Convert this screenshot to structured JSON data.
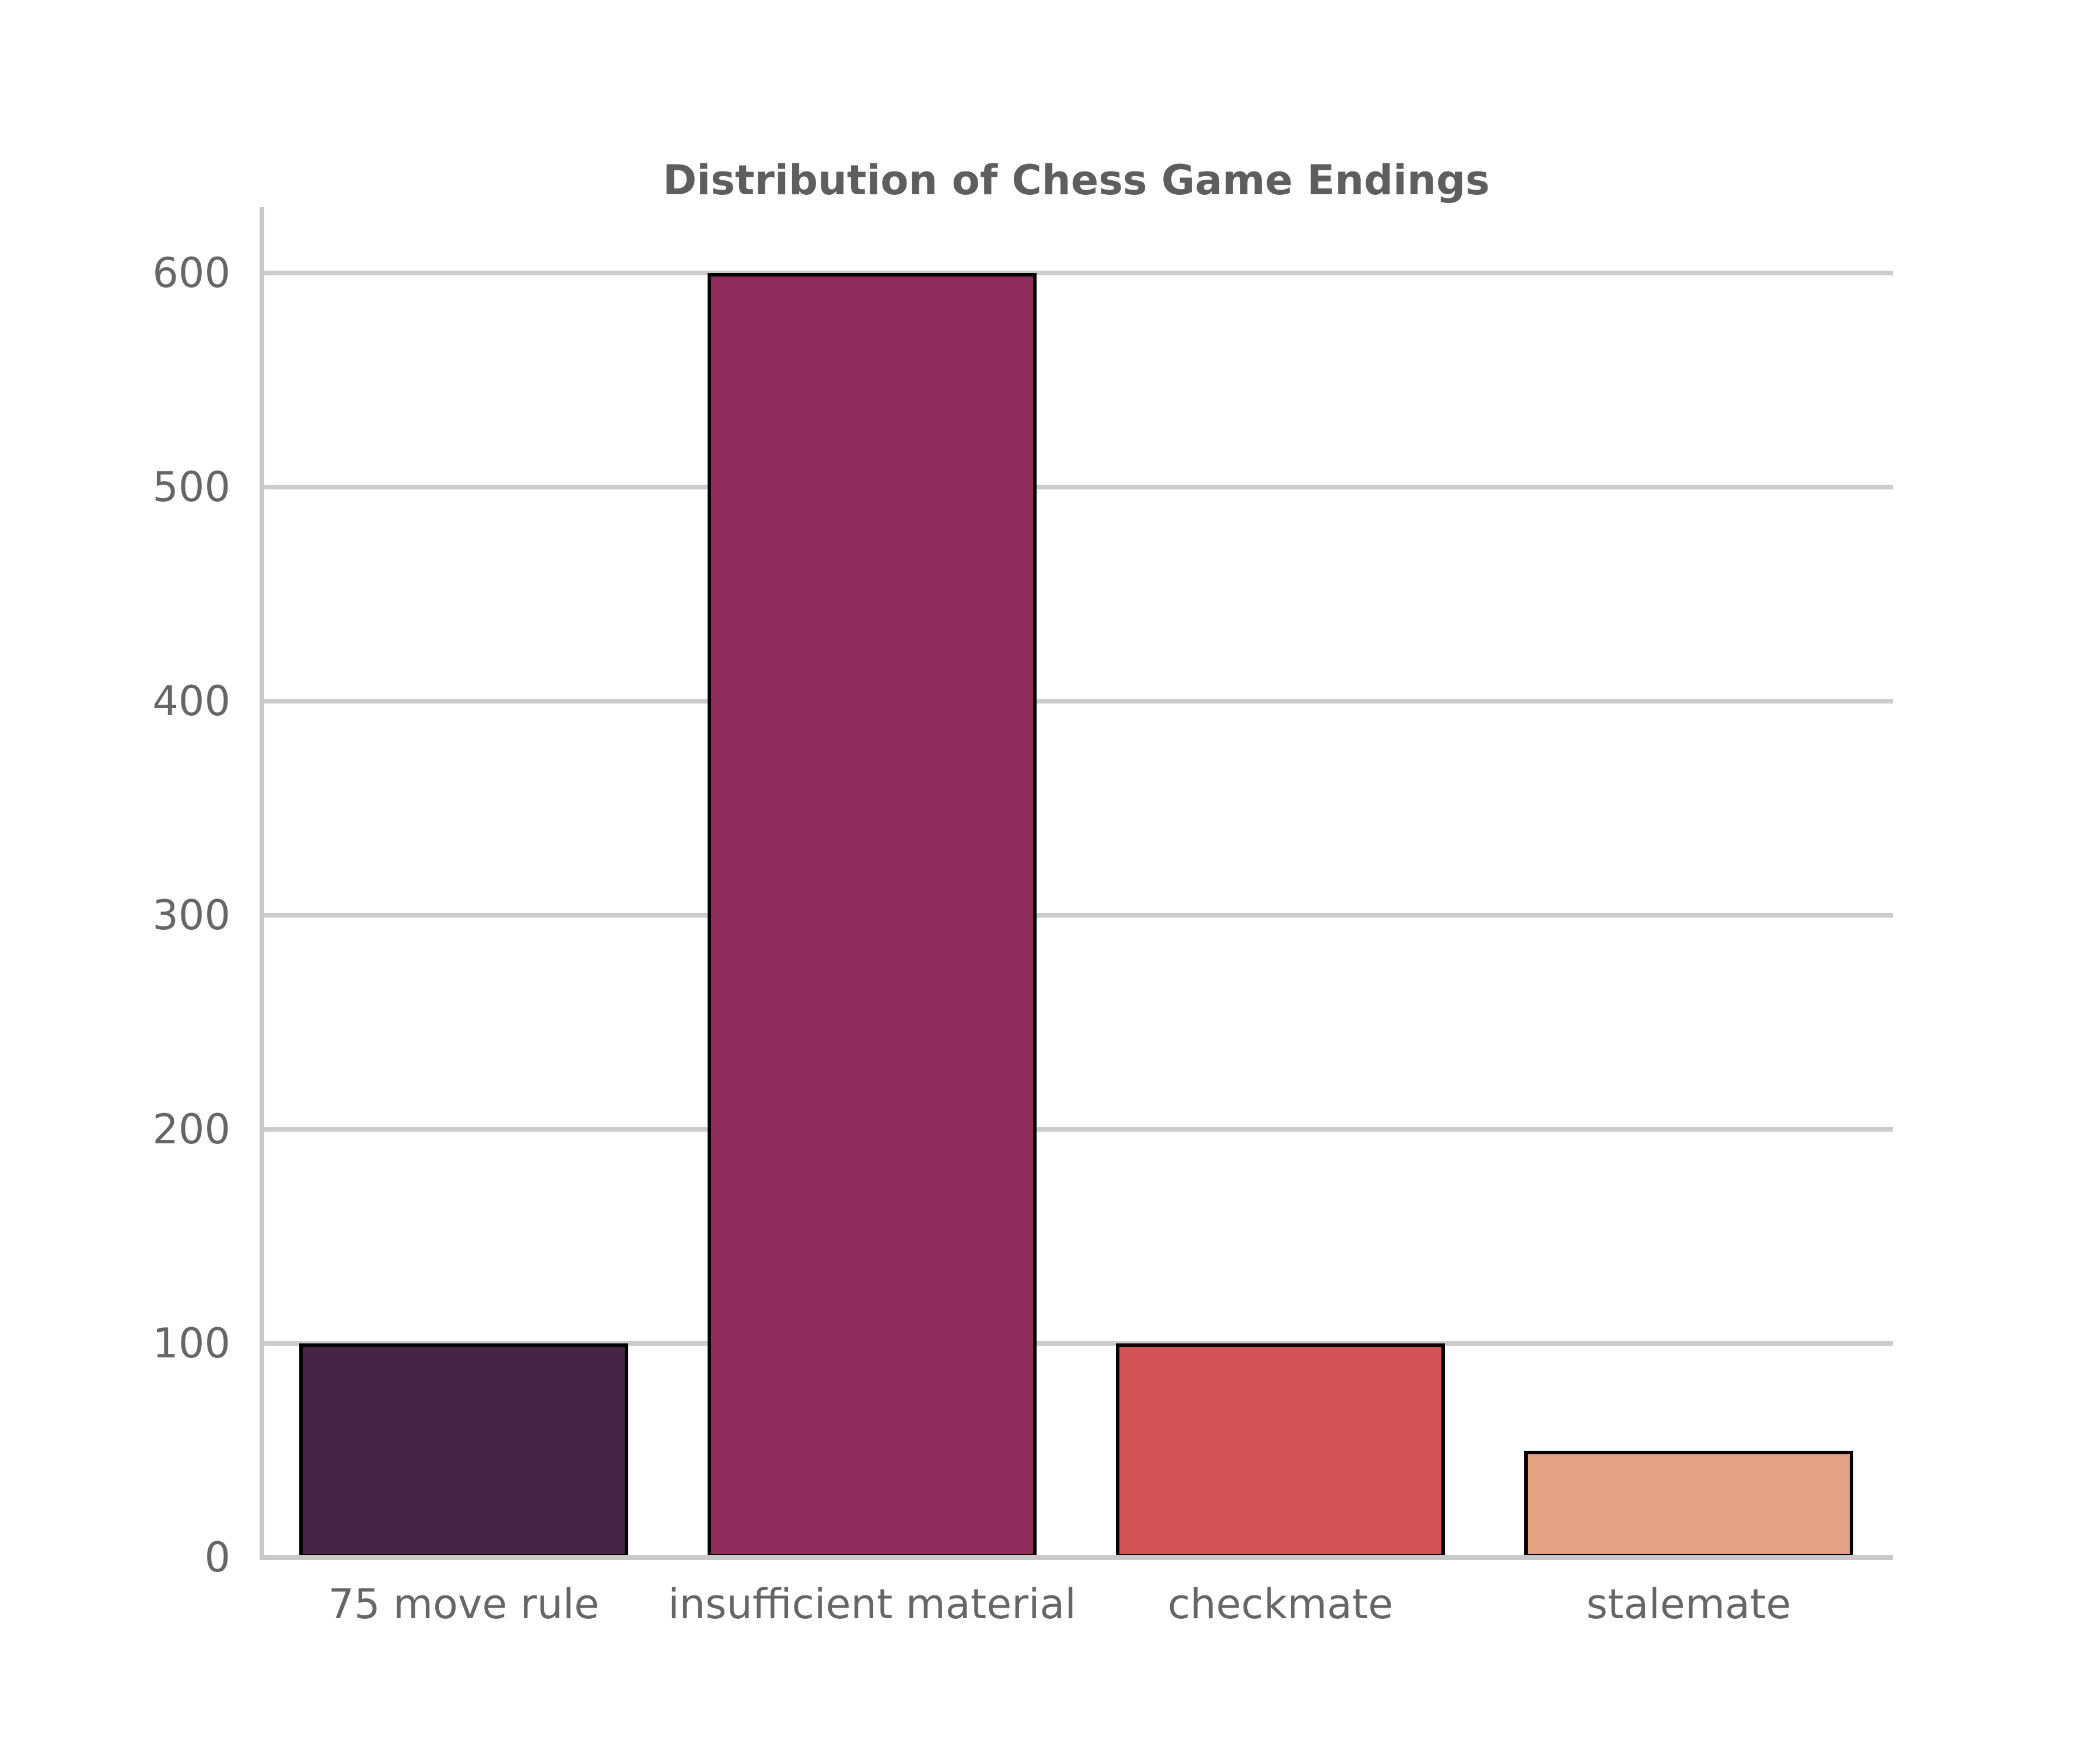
{
  "chart_data": {
    "type": "bar",
    "title": "Distribution of Chess Game Endings",
    "categories": [
      "75 move rule",
      "insufficient material",
      "checkmate",
      "stalemate"
    ],
    "values": [
      100,
      600,
      100,
      50
    ],
    "bar_colors": [
      "#462445",
      "#902c5c",
      "#d15355",
      "#e2a283"
    ],
    "bar_edge_color": "#000000",
    "xlabel": "",
    "ylabel": "",
    "yticks": [
      0,
      100,
      200,
      300,
      400,
      500,
      600
    ],
    "ylim": [
      0,
      630
    ],
    "grid": true,
    "legend": "none",
    "gridline_color": "#cccccc",
    "axis_color": "#c9c9c9",
    "tick_text_color": "#666666",
    "title_color": "#5e5e5e",
    "background_color": "#ffffff"
  }
}
